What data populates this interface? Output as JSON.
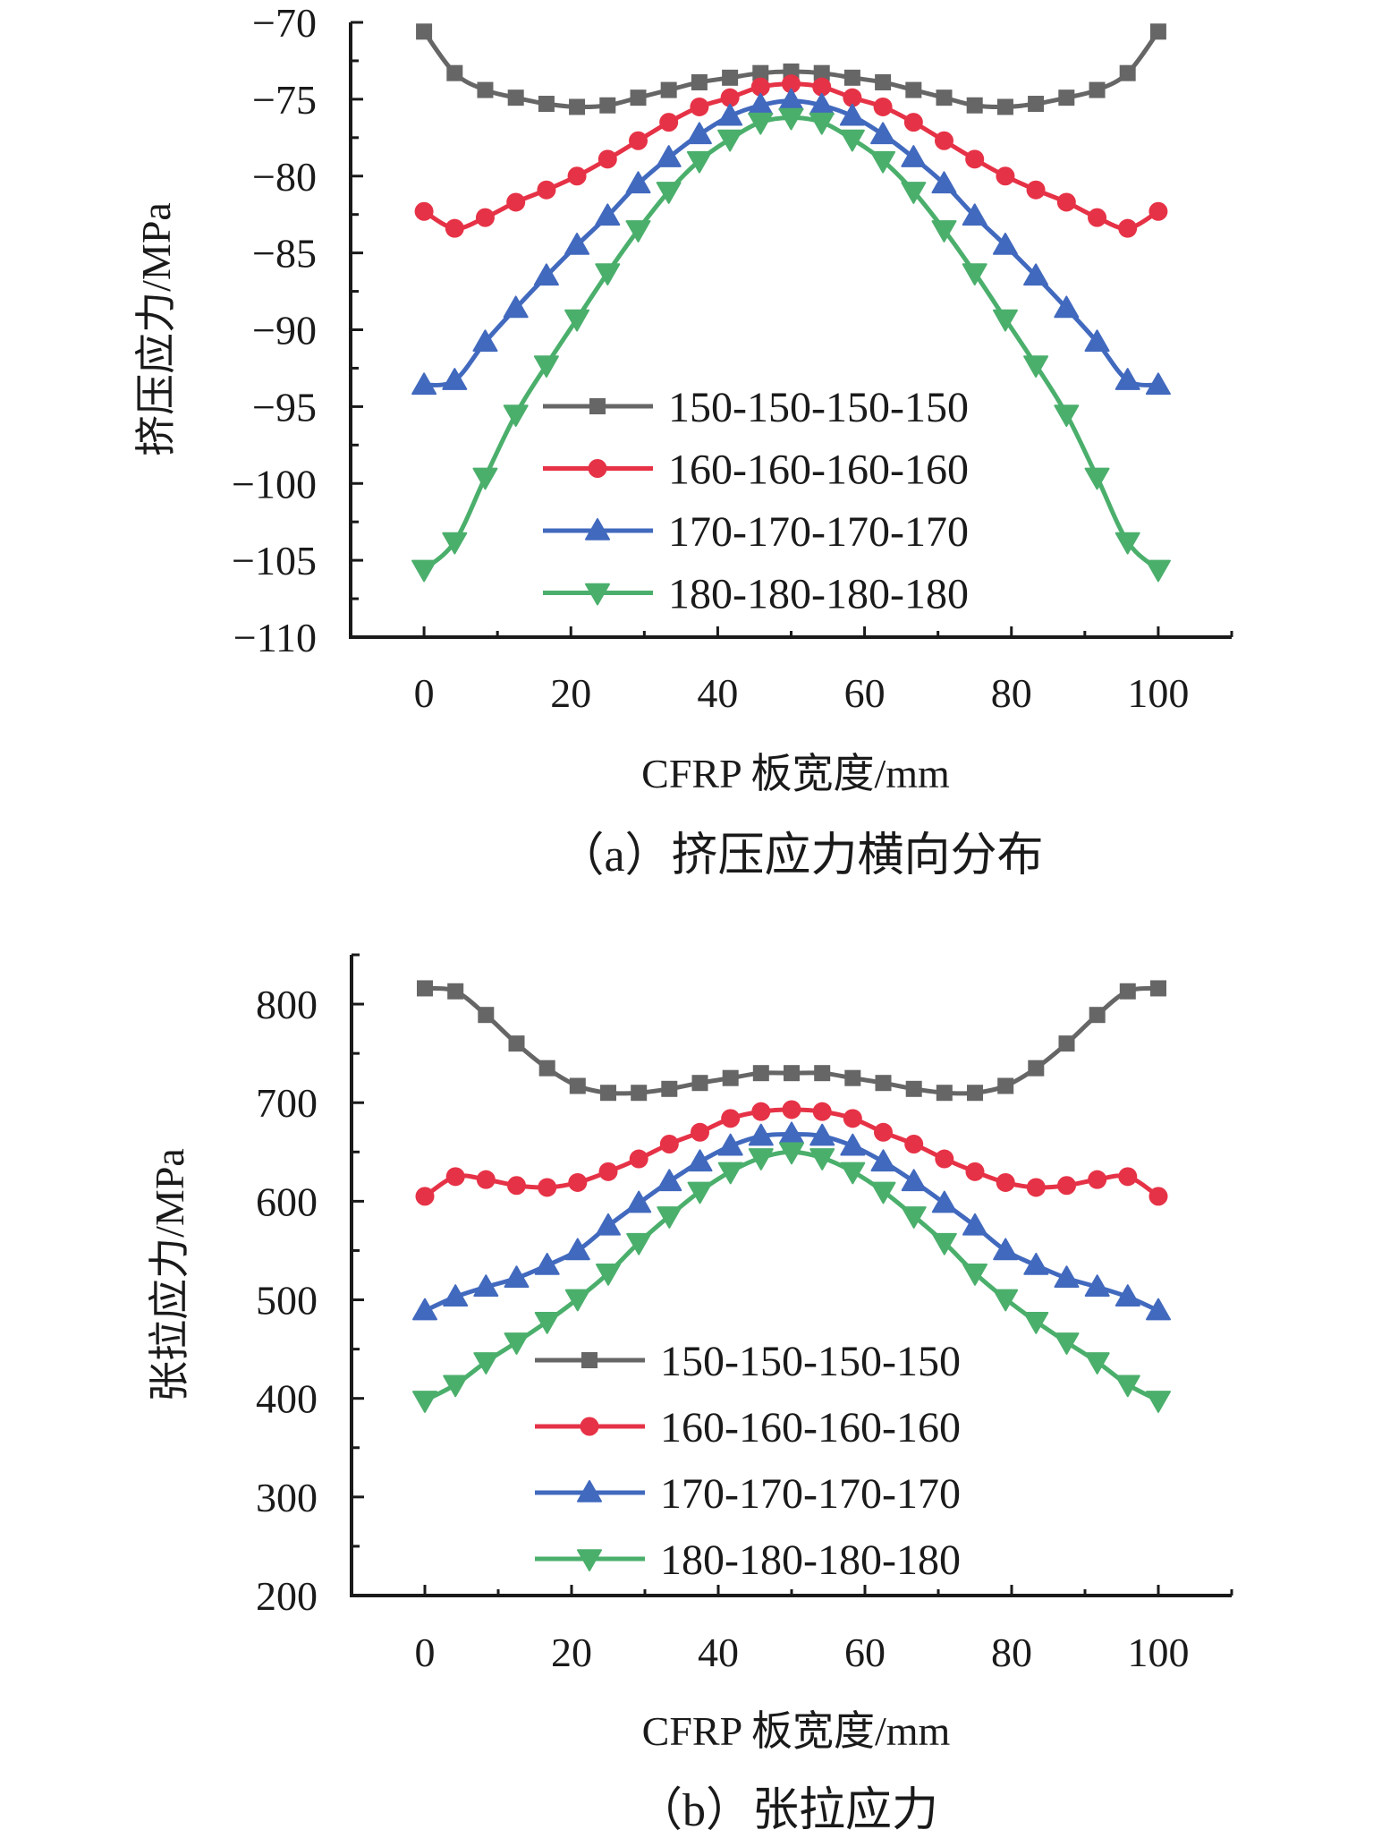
{
  "figure": {
    "caption_a": "（a）挤压应力横向分布",
    "caption_b": "（b）张拉应力"
  },
  "series_style": [
    {
      "name": "150-150-150-150",
      "color": "#666666",
      "marker": "square"
    },
    {
      "name": "160-160-160-160",
      "color": "#E63246",
      "marker": "circle"
    },
    {
      "name": "170-170-170-170",
      "color": "#4169BE",
      "marker": "triangle-up"
    },
    {
      "name": "180-180-180-180",
      "color": "#4BAF6C",
      "marker": "triangle-down"
    }
  ],
  "chart_data": [
    {
      "type": "line",
      "title": "（a）挤压应力横向分布",
      "xlabel": "CFRP 板宽度/mm",
      "ylabel": "挤压应力/MPa",
      "xlim": [
        -10,
        110
      ],
      "ylim": [
        -110,
        -70
      ],
      "xticks": [
        0,
        20,
        40,
        60,
        80,
        100
      ],
      "xtick_labels": [
        "0",
        "20",
        "40",
        "60",
        "80",
        "100"
      ],
      "yticks": [
        -70,
        -75,
        -80,
        -85,
        -90,
        -95,
        -100,
        -105,
        -110
      ],
      "ytick_labels": [
        "−70",
        "−75",
        "−80",
        "−85",
        "−90",
        "−95",
        "−100",
        "−105",
        "−110"
      ],
      "grid": false,
      "legend_position": "lower-center",
      "x": [
        0,
        4.17,
        8.33,
        12.5,
        16.67,
        20.83,
        25,
        29.17,
        33.33,
        37.5,
        41.67,
        45.83,
        50,
        54.17,
        58.33,
        62.5,
        66.67,
        70.83,
        75,
        79.17,
        83.33,
        87.5,
        91.67,
        95.83,
        100
      ],
      "series": [
        {
          "name": "150-150-150-150",
          "values": [
            -70.6,
            -73.3,
            -74.4,
            -74.9,
            -75.3,
            -75.5,
            -75.4,
            -74.9,
            -74.4,
            -73.9,
            -73.6,
            -73.3,
            -73.2,
            -73.3,
            -73.6,
            -73.9,
            -74.4,
            -74.9,
            -75.4,
            -75.5,
            -75.3,
            -74.9,
            -74.4,
            -73.3,
            -70.6
          ]
        },
        {
          "name": "160-160-160-160",
          "values": [
            -82.3,
            -83.4,
            -82.7,
            -81.7,
            -80.9,
            -80.0,
            -78.9,
            -77.7,
            -76.5,
            -75.5,
            -74.9,
            -74.2,
            -74.0,
            -74.2,
            -74.9,
            -75.5,
            -76.5,
            -77.7,
            -78.9,
            -80.0,
            -80.9,
            -81.7,
            -82.7,
            -83.4,
            -82.3
          ]
        },
        {
          "name": "170-170-170-170",
          "values": [
            -93.6,
            -93.3,
            -90.8,
            -88.6,
            -86.5,
            -84.5,
            -82.6,
            -80.5,
            -78.8,
            -77.3,
            -76.1,
            -75.4,
            -75.1,
            -75.4,
            -76.1,
            -77.3,
            -78.8,
            -80.5,
            -82.6,
            -84.5,
            -86.5,
            -88.6,
            -90.8,
            -93.3,
            -93.6
          ]
        },
        {
          "name": "180-180-180-180",
          "values": [
            -105.6,
            -103.8,
            -99.6,
            -95.5,
            -92.3,
            -89.3,
            -86.3,
            -83.5,
            -81.0,
            -79.0,
            -77.6,
            -76.5,
            -76.2,
            -76.5,
            -77.6,
            -79.0,
            -81.0,
            -83.5,
            -86.3,
            -89.3,
            -92.3,
            -95.5,
            -99.6,
            -103.8,
            -105.6
          ]
        }
      ]
    },
    {
      "type": "line",
      "title": "（b）张拉应力",
      "xlabel": "CFRP 板宽度/mm",
      "ylabel": "张拉应力/MPa",
      "xlim": [
        -10,
        110
      ],
      "ylim": [
        200,
        850
      ],
      "xticks": [
        0,
        20,
        40,
        60,
        80,
        100
      ],
      "xtick_labels": [
        "0",
        "20",
        "40",
        "60",
        "80",
        "100"
      ],
      "yticks": [
        200,
        300,
        400,
        500,
        600,
        700,
        800
      ],
      "ytick_labels": [
        "200",
        "300",
        "400",
        "500",
        "600",
        "700",
        "800"
      ],
      "grid": false,
      "legend_position": "lower-center",
      "x": [
        0,
        4.17,
        8.33,
        12.5,
        16.67,
        20.83,
        25,
        29.17,
        33.33,
        37.5,
        41.67,
        45.83,
        50,
        54.17,
        58.33,
        62.5,
        66.67,
        70.83,
        75,
        79.17,
        83.33,
        87.5,
        91.67,
        95.83,
        100
      ],
      "series": [
        {
          "name": "150-150-150-150",
          "values": [
            816,
            813,
            789,
            760,
            735,
            717,
            710,
            710,
            714,
            720,
            725,
            730,
            730,
            730,
            725,
            720,
            714,
            710,
            710,
            717,
            735,
            760,
            789,
            813,
            816
          ]
        },
        {
          "name": "160-160-160-160",
          "values": [
            605,
            625,
            622,
            616,
            614,
            619,
            630,
            643,
            658,
            670,
            684,
            691,
            693,
            691,
            684,
            670,
            658,
            643,
            630,
            619,
            614,
            616,
            622,
            625,
            605
          ]
        },
        {
          "name": "170-170-170-170",
          "values": [
            489,
            503,
            513,
            522,
            535,
            550,
            575,
            598,
            620,
            640,
            656,
            666,
            668,
            666,
            656,
            640,
            620,
            598,
            575,
            550,
            535,
            522,
            513,
            503,
            489
          ]
        },
        {
          "name": "180-180-180-180",
          "values": [
            398,
            414,
            437,
            457,
            478,
            501,
            527,
            558,
            585,
            610,
            630,
            644,
            650,
            644,
            630,
            610,
            585,
            558,
            527,
            501,
            478,
            457,
            437,
            414,
            398
          ]
        }
      ]
    }
  ]
}
